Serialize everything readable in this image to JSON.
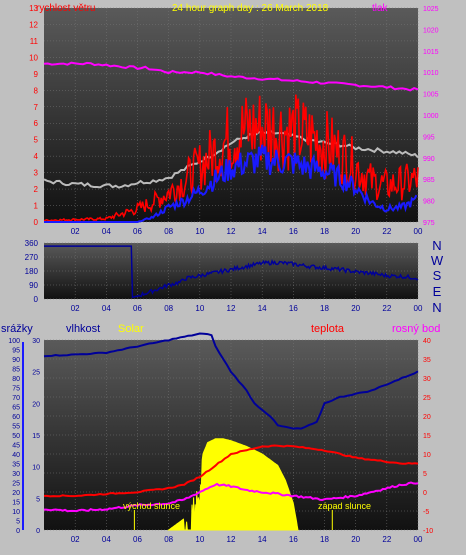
{
  "colors": {
    "wind": "#ff0000",
    "pressure": "#ff00ff",
    "header_title": "#ffff00",
    "direction": "#000099",
    "humidity": "#000099",
    "solar": "#ffff00",
    "temperature": "#ff0000",
    "dewpoint": "#ff00ff"
  },
  "header": {
    "wind_label": "rychlost větru",
    "title": "24 hour graph day : 26 March 2018",
    "pressure_label": "tlak"
  },
  "compass": [
    "N",
    "W",
    "S",
    "E",
    "N"
  ],
  "bottom_labels": {
    "rain": "srážky",
    "humidity": "vlhkost",
    "solar": "Solar",
    "temperature": "teplota",
    "dewpoint": "rosný bod"
  },
  "annotations": {
    "sunrise": "východ slunce",
    "sunset": "západ slunce"
  },
  "chart_data": [
    {
      "type": "line",
      "name": "wind and pressure",
      "x_ticks": [
        "02",
        "04",
        "06",
        "08",
        "10",
        "12",
        "14",
        "16",
        "18",
        "20",
        "22",
        "00"
      ],
      "y_left_ticks": [
        "0",
        "1",
        "2",
        "3",
        "4",
        "5",
        "6",
        "7",
        "8",
        "9",
        "10",
        "11",
        "12",
        "13"
      ],
      "y_right_ticks": [
        "975",
        "980",
        "985",
        "990",
        "995",
        "1000",
        "1005",
        "1010",
        "1015",
        "1020",
        "1025"
      ],
      "ylim_left": [
        0,
        13
      ],
      "ylim_right": [
        975,
        1025
      ],
      "xlim": [
        0,
        24
      ],
      "series": [
        {
          "axis": "right",
          "x": [
            0,
            3,
            6,
            6.5,
            8,
            10,
            12,
            14,
            16,
            18,
            20,
            22,
            23.5,
            24
          ],
          "values": [
            1012,
            1012,
            1011,
            1011,
            1010,
            1010,
            1009,
            1008.5,
            1008,
            1007.5,
            1007,
            1006.5,
            1006,
            1006
          ]
        },
        {
          "axis": "left",
          "x": [
            0,
            2,
            4,
            5,
            6,
            7,
            8,
            9,
            10,
            11,
            12,
            13,
            14,
            15,
            16,
            17,
            18,
            19,
            20,
            21,
            22,
            23,
            24
          ],
          "values": [
            2.5,
            2.3,
            2.2,
            2.2,
            2.4,
            2.5,
            2.7,
            3.2,
            3.7,
            4.2,
            4.8,
            5.2,
            5.4,
            5.4,
            5.2,
            5,
            4.8,
            4.7,
            4.5,
            4.4,
            4.3,
            4.2,
            4
          ]
        },
        {
          "axis": "left",
          "x": [
            0,
            4,
            5,
            6,
            7,
            8,
            9,
            10,
            11,
            12,
            13,
            14,
            15,
            16,
            17,
            18,
            19,
            20,
            21,
            22,
            23,
            24
          ],
          "values": [
            0.1,
            0.2,
            0.5,
            0.8,
            1.2,
            1.8,
            2.5,
            3.4,
            4.3,
            5.2,
            5.6,
            5.8,
            5.6,
            5.5,
            5.2,
            4.8,
            4.2,
            3.4,
            2.5,
            2.2,
            2.4,
            2.6
          ]
        },
        {
          "axis": "left",
          "x": [
            0,
            6,
            7,
            8,
            9,
            10,
            11,
            12,
            13,
            14,
            15,
            16,
            17,
            18,
            19,
            20,
            21,
            22,
            23,
            24
          ],
          "values": [
            0,
            0,
            0.3,
            0.9,
            1.3,
            1.9,
            2.6,
            3.3,
            3.6,
            3.8,
            3.7,
            3.6,
            3.3,
            3.1,
            2.7,
            2.1,
            1.2,
            0.8,
            0.9,
            1.4
          ]
        }
      ]
    },
    {
      "type": "line",
      "name": "wind direction",
      "x_ticks": [
        "02",
        "04",
        "06",
        "08",
        "10",
        "12",
        "14",
        "16",
        "18",
        "20",
        "22",
        "00"
      ],
      "y_ticks": [
        "0",
        "90",
        "180",
        "270",
        "360"
      ],
      "ylim": [
        0,
        360
      ],
      "xlim": [
        0,
        24
      ],
      "series": [
        {
          "x": [
            0,
            5.6,
            5.65,
            6,
            6.8,
            7.2,
            8,
            8.8,
            9,
            10,
            11,
            12,
            13,
            14,
            15,
            16,
            17,
            18,
            19,
            20,
            21,
            22,
            23,
            24
          ],
          "values": [
            340,
            340,
            10,
            20,
            45,
            60,
            90,
            110,
            130,
            150,
            170,
            190,
            210,
            230,
            235,
            225,
            210,
            200,
            190,
            175,
            165,
            150,
            145,
            135
          ]
        }
      ]
    },
    {
      "type": "line",
      "name": "rain humidity solar temperature dewpoint",
      "x_ticks": [
        "02",
        "04",
        "06",
        "08",
        "10",
        "12",
        "14",
        "16",
        "18",
        "20",
        "22",
        "00"
      ],
      "rain_ticks": [
        "0",
        "5",
        "10",
        "15",
        "20",
        "25",
        "30",
        "35",
        "40",
        "45",
        "50",
        "55",
        "60",
        "65",
        "70",
        "75",
        "80",
        "85",
        "90",
        "95",
        "100"
      ],
      "humidity_ticks": [
        "0",
        "5",
        "10",
        "15",
        "20",
        "25",
        "30"
      ],
      "temperature_ticks": [
        "-10",
        "-5",
        "0",
        "5",
        "10",
        "15",
        "20",
        "25",
        "30",
        "35",
        "40"
      ],
      "rain_lim": [
        0,
        100
      ],
      "humidity_lim": [
        0,
        30
      ],
      "temperature_lim": [
        -10,
        40
      ],
      "xlim": [
        0,
        24
      ],
      "series": [
        {
          "axis": "left",
          "x": [
            0,
            2,
            4,
            5,
            6,
            8,
            10,
            10.8,
            11,
            12,
            13,
            13.5,
            14,
            14.5,
            15,
            16,
            16.5,
            17,
            17.5,
            18,
            19,
            20,
            21,
            22,
            23,
            24
          ],
          "values": [
            27.5,
            27.7,
            28,
            28.5,
            29,
            30,
            31,
            30.8,
            29,
            25,
            22,
            20,
            19,
            18,
            16.5,
            16,
            16,
            16.5,
            17,
            20,
            21,
            21.5,
            22,
            23,
            24,
            25
          ]
        },
        {
          "axis": "right",
          "x": [
            0,
            2,
            4,
            6,
            8,
            9,
            10,
            11,
            12,
            13,
            14,
            15,
            16,
            17,
            18,
            19,
            20,
            21,
            22,
            23,
            24
          ],
          "values": [
            -1,
            -1,
            -0.5,
            0,
            1,
            2,
            4,
            7,
            10,
            11,
            12,
            12.2,
            12,
            11.5,
            11,
            10,
            9,
            8.5,
            8,
            7.5,
            7.5
          ]
        },
        {
          "axis": "right",
          "x": [
            0,
            2,
            4,
            6,
            8,
            9,
            10,
            11,
            12,
            13,
            14,
            15,
            16,
            17,
            18,
            19,
            20,
            21,
            22,
            23,
            24
          ],
          "values": [
            -4.5,
            -5,
            -4.5,
            -3.5,
            -3,
            -2,
            0,
            2,
            1.5,
            0.5,
            0,
            -0.5,
            -1,
            -1.5,
            -2,
            -1.5,
            -1,
            0,
            1,
            2,
            2.5
          ]
        },
        {
          "axis": "right",
          "x": [
            8,
            9,
            9.3,
            10,
            10.5,
            11,
            11.5,
            12,
            13,
            14,
            15,
            15.5,
            16,
            16.3
          ],
          "values": [
            -10,
            -7,
            -3,
            8,
            13,
            14,
            14,
            13.5,
            12,
            10,
            7,
            3,
            -3,
            -10
          ]
        }
      ]
    }
  ]
}
